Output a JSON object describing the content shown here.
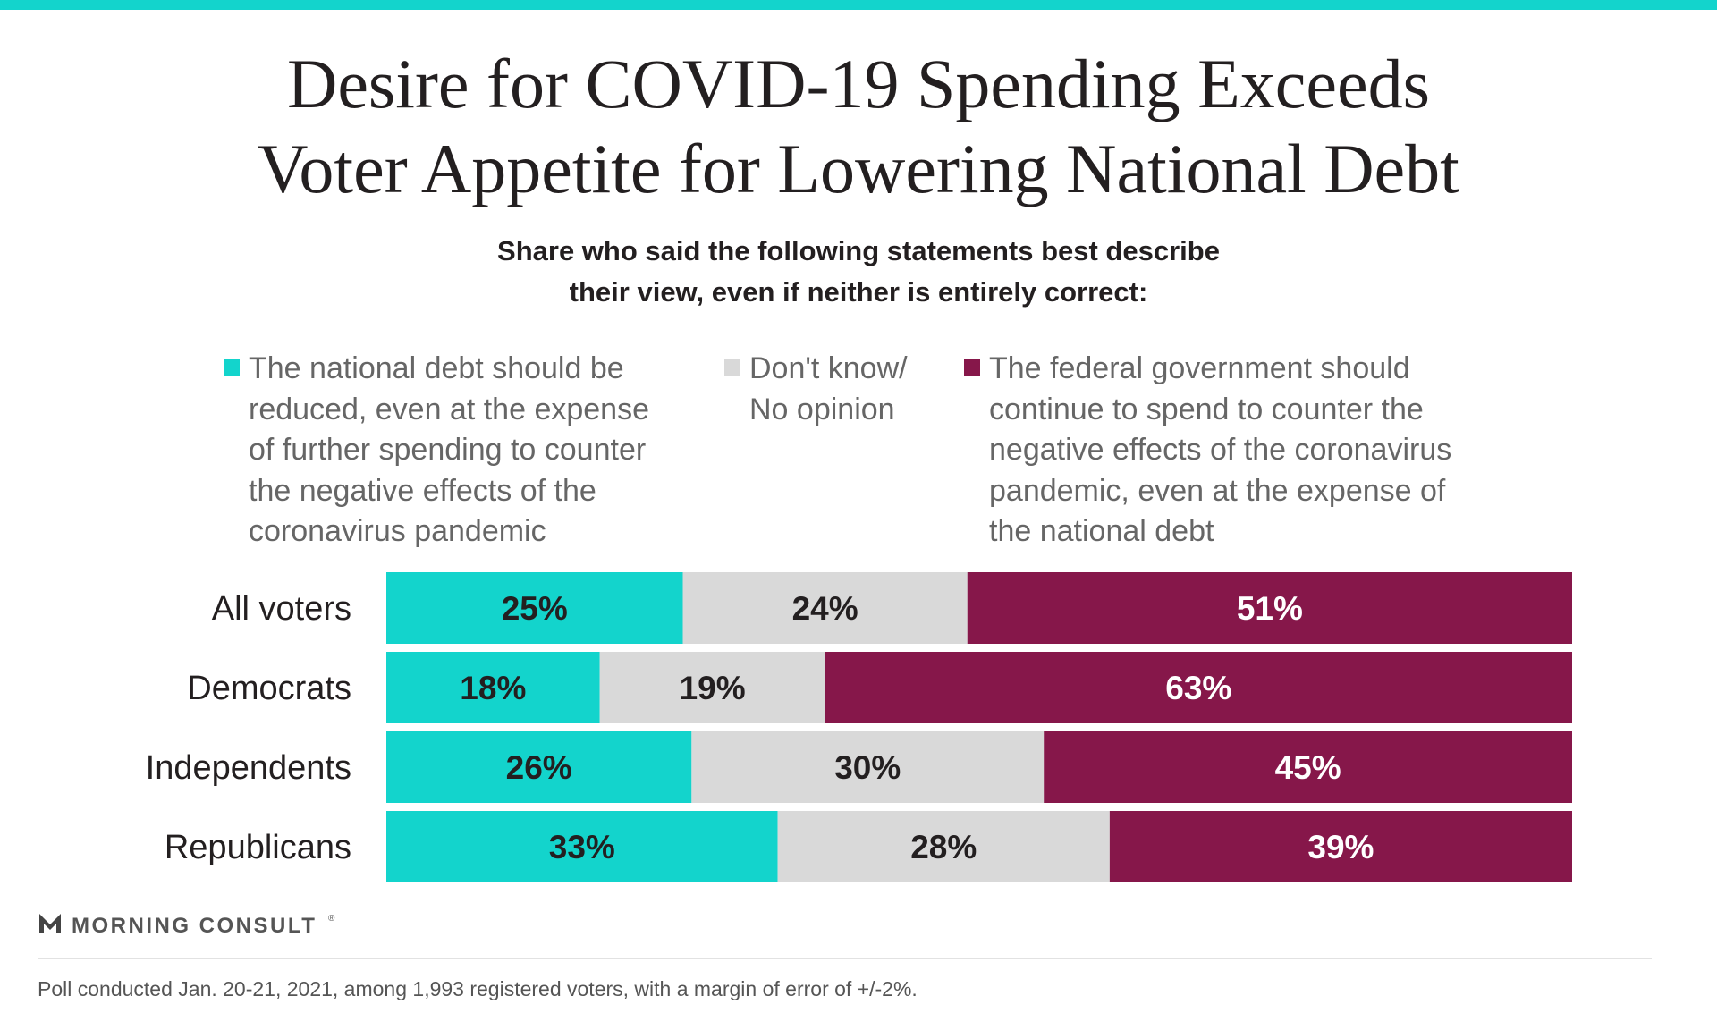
{
  "colors": {
    "accent_bar": "#13d4cc",
    "reduce_debt": "#13d4cc",
    "dont_know": "#d9d9d9",
    "continue_spending": "#86174a",
    "label_dark": "#231f20",
    "label_light": "#ffffff"
  },
  "title": {
    "line1": "Desire for COVID-19 Spending Exceeds",
    "line2": "Voter Appetite for Lowering National Debt"
  },
  "subtitle": {
    "line1": "Share who said the following statements best describe",
    "line2": "their view, even if neither is entirely correct:"
  },
  "legend": [
    {
      "color": "#13d4cc",
      "lines": [
        "The national debt should be",
        "reduced, even at the expense",
        "of further spending to counter",
        "the negative effects of the",
        "coronavirus pandemic"
      ]
    },
    {
      "color": "#d9d9d9",
      "lines": [
        "Don't know/",
        "No opinion"
      ]
    },
    {
      "color": "#86174a",
      "lines": [
        "The federal government should",
        "continue to spend to counter the",
        "negative effects of the coronavirus",
        "pandemic, even at the expense of",
        "the national debt"
      ]
    }
  ],
  "chart_data": {
    "type": "bar",
    "orientation": "horizontal",
    "stacked": true,
    "value_unit": "%",
    "categories": [
      "All voters",
      "Democrats",
      "Independents",
      "Republicans"
    ],
    "series": [
      {
        "values": [
          25,
          18,
          26,
          33
        ],
        "color": "#13d4cc",
        "label_color": "#231f20"
      },
      {
        "values": [
          24,
          19,
          30,
          28
        ],
        "color": "#d9d9d9",
        "label_color": "#231f20"
      },
      {
        "values": [
          51,
          63,
          45,
          39
        ],
        "color": "#86174a",
        "label_color": "#ffffff"
      }
    ]
  },
  "brand": {
    "name": "MORNING CONSULT",
    "mark": "®"
  },
  "footnote": "Poll conducted Jan. 20-21, 2021, among 1,993 registered voters, with a margin of error of +/-2%."
}
